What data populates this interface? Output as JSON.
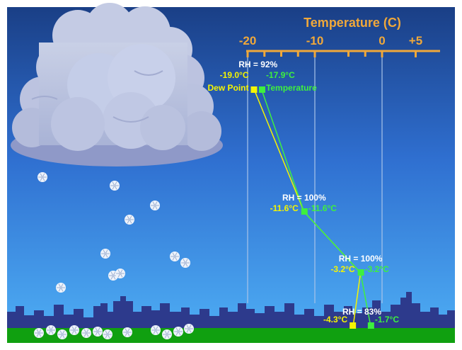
{
  "axis": {
    "title": "Temperature (C)",
    "ticks": [
      {
        "label": "-20",
        "value": -20
      },
      {
        "label": "-10",
        "value": -10
      },
      {
        "label": "0",
        "value": 0
      },
      {
        "label": "+5",
        "value": 5
      }
    ],
    "minor_ticks": [
      -15,
      -5
    ],
    "color": "#f0a83a"
  },
  "levels": [
    {
      "rh": "RH = 92%",
      "dew_point": "-19.0°C",
      "dew_point_value": -19.0,
      "temperature": "-17.9°C",
      "temperature_value": -17.9,
      "dew_point_label": "Dew Point",
      "temperature_label": "Temperature"
    },
    {
      "rh": "RH = 100%",
      "dew_point": "-11.6°C",
      "dew_point_value": -11.6,
      "temperature": "-11.6°C",
      "temperature_value": -11.6
    },
    {
      "rh": "RH = 100%",
      "dew_point": "-3.2°C",
      "dew_point_value": -3.2,
      "temperature": "-3.2°C",
      "temperature_value": -3.2
    },
    {
      "rh": "RH = 83%",
      "dew_point": "-4.3°C",
      "dew_point_value": -4.3,
      "temperature": "-1.7°C",
      "temperature_value": -1.7
    }
  ],
  "colors": {
    "dew_point": "#f5f500",
    "temperature": "#3ef03e",
    "rh_text": "#ffffff",
    "sky_top": "#1a3f86",
    "sky_bottom": "#46a6f2",
    "city": "#2d3a8c",
    "ground": "#10a010"
  }
}
